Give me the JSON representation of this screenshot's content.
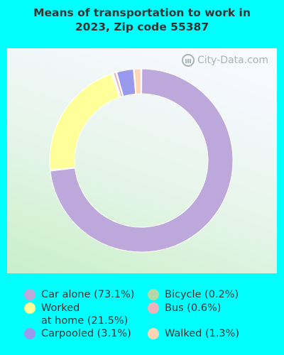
{
  "title_line1": "Means of transportation to work in",
  "title_line2": "2023, Zip code 55387",
  "watermark": "City-Data.com",
  "watermark_icon": "city-data-logo-icon",
  "colors": {
    "background": "#00ffff",
    "title": "#333333"
  },
  "legend": {
    "items": [
      {
        "label": "Car alone (73.1%)",
        "color": "#bca8db"
      },
      {
        "label": "Worked\nat home (21.5%)",
        "color": "#ffff99"
      },
      {
        "label": "Carpooled (3.1%)",
        "color": "#9999ee"
      },
      {
        "label": "Bicycle (0.2%)",
        "color": "#b3d9a7"
      },
      {
        "label": "Bus (0.6%)",
        "color": "#eeb3bb"
      },
      {
        "label": "Walked (1.3%)",
        "color": "#ffd5b3"
      }
    ]
  },
  "chart_data": {
    "type": "pie",
    "style": "donut",
    "title": "Means of transportation to work in 2023, Zip code 55387",
    "legend_position": "bottom",
    "series": [
      {
        "name": "Car alone",
        "value": 73.1,
        "color": "#bca8db"
      },
      {
        "name": "Worked at home",
        "value": 21.5,
        "color": "#ffff99"
      },
      {
        "name": "Bicycle",
        "value": 0.2,
        "color": "#b3d9a7"
      },
      {
        "name": "Bus",
        "value": 0.6,
        "color": "#eeb3bb"
      },
      {
        "name": "Carpooled",
        "value": 3.1,
        "color": "#9999ee"
      },
      {
        "name": "Walked",
        "value": 1.3,
        "color": "#ffd5b3"
      }
    ]
  }
}
